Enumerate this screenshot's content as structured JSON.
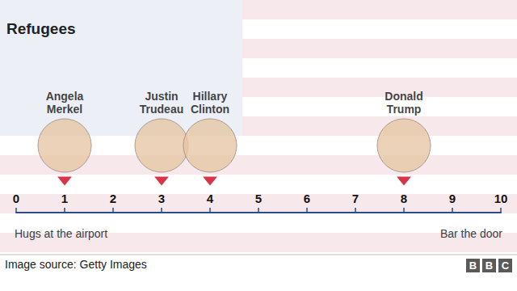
{
  "chart_data": {
    "type": "scatter",
    "title": "Refugees",
    "x": [
      1,
      3,
      4,
      8
    ],
    "point_labels": [
      "Angela Merkel",
      "Justin Trudeau",
      "Hillary Clinton",
      "Donald Trump"
    ],
    "xlim": [
      0,
      10
    ],
    "xticks": [
      0,
      1,
      2,
      3,
      4,
      5,
      6,
      7,
      8,
      9,
      10
    ],
    "annotations": [
      "Hugs at the airport",
      "Bar the door"
    ],
    "source": "Image source: Getty Images",
    "brand": "BBC",
    "color": "#d0021b",
    "marker": "triangle",
    "grid": false
  }
}
